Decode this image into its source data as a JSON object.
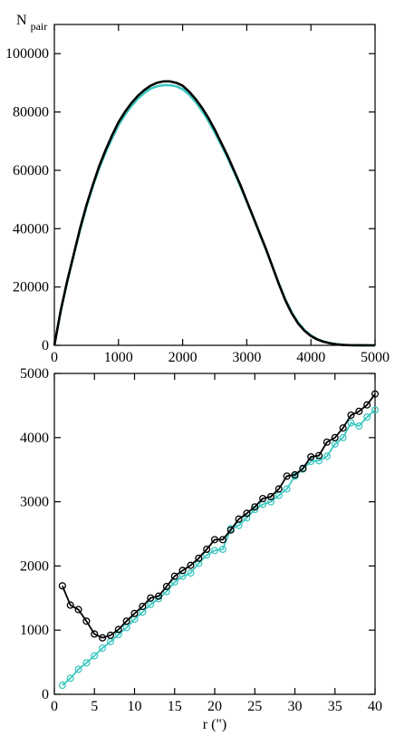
{
  "colors": {
    "series_a": "#000000",
    "series_b": "#3cc8c0"
  },
  "chart_data": [
    {
      "type": "line",
      "title": "",
      "xlabel": "",
      "ylabel_main": "N",
      "ylabel_sub": "pair",
      "xlim": [
        0,
        5000
      ],
      "ylim": [
        0,
        110000
      ],
      "xticks": [
        "0",
        "1000",
        "2000",
        "3000",
        "4000",
        "5000"
      ],
      "xtick_values": [
        0,
        1000,
        2000,
        3000,
        4000,
        5000
      ],
      "yticks": [
        "0",
        "20000",
        "40000",
        "60000",
        "80000",
        "100000"
      ],
      "ytick_values": [
        0,
        20000,
        40000,
        60000,
        80000,
        100000
      ],
      "grid": false,
      "series": [
        {
          "color": "#000000",
          "x": [
            0,
            100,
            200,
            300,
            400,
            500,
            600,
            700,
            800,
            900,
            1000,
            1100,
            1200,
            1300,
            1400,
            1500,
            1600,
            1700,
            1800,
            1900,
            2000,
            2100,
            2200,
            2300,
            2400,
            2500,
            2600,
            2700,
            2800,
            2900,
            3000,
            3100,
            3200,
            3300,
            3400,
            3500,
            3600,
            3700,
            3800,
            3900,
            4000,
            4100,
            4200,
            4300,
            4400,
            4500,
            4600,
            4700,
            4800,
            4900,
            5000
          ],
          "values": [
            0,
            12000,
            22000,
            31000,
            40000,
            48000,
            55000,
            61500,
            67000,
            72000,
            76500,
            80000,
            83000,
            85500,
            87500,
            89000,
            90000,
            90500,
            90500,
            90000,
            89000,
            87000,
            84500,
            81500,
            78000,
            74000,
            69500,
            65000,
            60000,
            55000,
            49500,
            44000,
            38500,
            33000,
            27000,
            21000,
            15500,
            11000,
            7500,
            5000,
            3200,
            2000,
            1200,
            700,
            350,
            150,
            60,
            20,
            5,
            1,
            0
          ]
        },
        {
          "color": "#3cc8c0",
          "x": [
            0,
            100,
            200,
            300,
            400,
            500,
            600,
            700,
            800,
            900,
            1000,
            1100,
            1200,
            1300,
            1400,
            1500,
            1600,
            1700,
            1800,
            1900,
            2000,
            2100,
            2200,
            2300,
            2400,
            2500,
            2600,
            2700,
            2800,
            2900,
            3000,
            3100,
            3200,
            3300,
            3400,
            3500,
            3600,
            3700,
            3800,
            3900,
            4000,
            4100,
            4200,
            4300,
            4400,
            4500,
            4600,
            4700,
            4800,
            4900,
            5000
          ],
          "values": [
            0,
            11800,
            21800,
            30800,
            39500,
            47500,
            54500,
            60800,
            66200,
            71000,
            75500,
            79000,
            82000,
            84500,
            86500,
            88000,
            88800,
            89200,
            89200,
            88800,
            87800,
            86000,
            83500,
            80500,
            77000,
            73000,
            68800,
            64300,
            59500,
            54500,
            49200,
            43800,
            38300,
            32800,
            27000,
            21200,
            15800,
            11300,
            7800,
            5200,
            3400,
            2100,
            1300,
            750,
            380,
            170,
            70,
            25,
            6,
            1,
            0
          ]
        }
      ]
    },
    {
      "type": "line",
      "title": "",
      "xlabel": "r (\")",
      "ylabel": "",
      "xlim": [
        0,
        40
      ],
      "ylim": [
        0,
        5000
      ],
      "xticks": [
        "0",
        "5",
        "10",
        "15",
        "20",
        "25",
        "30",
        "35",
        "40"
      ],
      "xtick_values": [
        0,
        5,
        10,
        15,
        20,
        25,
        30,
        35,
        40
      ],
      "yticks": [
        "0",
        "1000",
        "2000",
        "3000",
        "4000",
        "5000"
      ],
      "ytick_values": [
        0,
        1000,
        2000,
        3000,
        4000,
        5000
      ],
      "grid": false,
      "markers": "open-circle",
      "series": [
        {
          "color": "#000000",
          "x": [
            1,
            2,
            3,
            4,
            5,
            6,
            7,
            8,
            9,
            10,
            11,
            12,
            13,
            14,
            15,
            16,
            17,
            18,
            19,
            20,
            21,
            22,
            23,
            24,
            25,
            26,
            27,
            28,
            29,
            30,
            31,
            32,
            33,
            34,
            35,
            36,
            37,
            38,
            39,
            40
          ],
          "values": [
            1690,
            1390,
            1320,
            1140,
            940,
            880,
            920,
            1010,
            1140,
            1260,
            1370,
            1500,
            1530,
            1680,
            1840,
            1930,
            2010,
            2120,
            2260,
            2410,
            2410,
            2560,
            2730,
            2820,
            2920,
            3050,
            3080,
            3200,
            3400,
            3420,
            3520,
            3700,
            3720,
            3930,
            4000,
            4150,
            4350,
            4410,
            4510,
            4680
          ]
        },
        {
          "color": "#3cc8c0",
          "x": [
            1,
            2,
            3,
            4,
            5,
            6,
            7,
            8,
            9,
            10,
            11,
            12,
            13,
            14,
            15,
            16,
            17,
            18,
            19,
            20,
            21,
            22,
            23,
            24,
            25,
            26,
            27,
            28,
            29,
            30,
            31,
            32,
            33,
            34,
            35,
            36,
            37,
            38,
            39,
            40
          ],
          "values": [
            140,
            250,
            390,
            490,
            600,
            720,
            820,
            930,
            1040,
            1170,
            1280,
            1400,
            1490,
            1600,
            1750,
            1840,
            1890,
            2040,
            2170,
            2240,
            2260,
            2580,
            2630,
            2750,
            2880,
            2960,
            3000,
            3100,
            3200,
            3400,
            3510,
            3630,
            3640,
            3710,
            3900,
            4000,
            4230,
            4180,
            4320,
            4430
          ]
        }
      ]
    }
  ]
}
